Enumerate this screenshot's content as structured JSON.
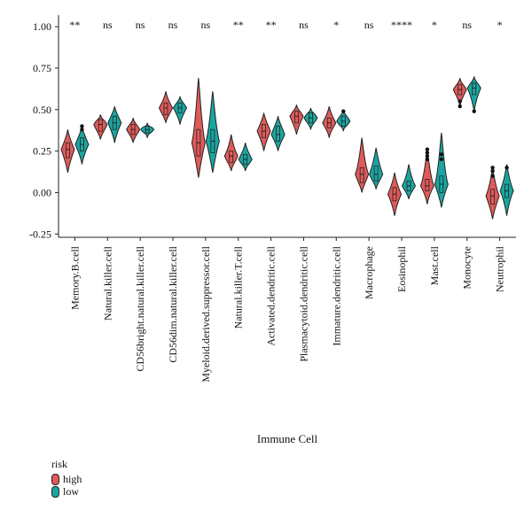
{
  "chart_data": {
    "type": "violin",
    "xlabel": "Immune Cell",
    "ylabel": "",
    "ylim": [
      -0.27,
      1.07
    ],
    "yticks": [
      "1.00",
      "0.75",
      "0.50",
      "0.25",
      "0.00",
      "-0.25"
    ],
    "ytick_values": [
      1.0,
      0.75,
      0.5,
      0.25,
      0.0,
      -0.25
    ],
    "categories": [
      "Memory.B.cell",
      "Natural.killer.cell",
      "CD56bright.natural.killer.cell",
      "CD56dim.natural.killer.cell",
      "Myeloid.derived.suppressor.cell",
      "Natural.killer.T.cell",
      "Activated.dendritic.cell",
      "Plasmacytoid.dendritic.cell",
      "Immature.dendritic.cell",
      "Macrophage",
      "Eosinophil",
      "Mast.cell",
      "Monocyte",
      "Neutrophil"
    ],
    "significance": [
      "**",
      "ns",
      "ns",
      "ns",
      "ns",
      "**",
      "**",
      "ns",
      "*",
      "ns",
      "****",
      "*",
      "ns",
      "*"
    ],
    "series": [
      {
        "name": "high",
        "color": "#e05a5a",
        "min": [
          0.12,
          0.32,
          0.3,
          0.42,
          0.09,
          0.13,
          0.25,
          0.35,
          0.33,
          0.0,
          -0.14,
          -0.07,
          0.52,
          -0.16
        ],
        "q1": [
          0.21,
          0.37,
          0.35,
          0.47,
          0.22,
          0.18,
          0.33,
          0.42,
          0.39,
          0.06,
          -0.05,
          0.01,
          0.59,
          -0.07
        ],
        "median": [
          0.26,
          0.41,
          0.38,
          0.51,
          0.3,
          0.22,
          0.37,
          0.46,
          0.42,
          0.11,
          -0.01,
          0.04,
          0.62,
          -0.02
        ],
        "q3": [
          0.3,
          0.44,
          0.41,
          0.54,
          0.38,
          0.25,
          0.41,
          0.49,
          0.45,
          0.15,
          0.03,
          0.08,
          0.65,
          0.02
        ],
        "max": [
          0.38,
          0.47,
          0.45,
          0.61,
          0.69,
          0.35,
          0.48,
          0.53,
          0.52,
          0.33,
          0.12,
          0.26,
          0.69,
          0.15
        ],
        "outliers": [
          [],
          [],
          [],
          [],
          [],
          [],
          [],
          [],
          [],
          [],
          [],
          [
            0.2,
            0.22,
            0.24,
            0.26
          ],
          [
            0.52,
            0.55
          ],
          [
            0.1,
            0.13,
            0.15
          ]
        ]
      },
      {
        "name": "low",
        "color": "#1aa6a0",
        "min": [
          0.17,
          0.3,
          0.33,
          0.41,
          0.12,
          0.13,
          0.25,
          0.38,
          0.37,
          0.02,
          -0.04,
          -0.09,
          0.49,
          -0.14
        ],
        "q1": [
          0.25,
          0.38,
          0.36,
          0.48,
          0.24,
          0.17,
          0.31,
          0.42,
          0.4,
          0.07,
          0.01,
          0.0,
          0.59,
          -0.03
        ],
        "median": [
          0.29,
          0.42,
          0.38,
          0.51,
          0.31,
          0.2,
          0.35,
          0.45,
          0.43,
          0.11,
          0.04,
          0.05,
          0.63,
          0.01
        ],
        "q3": [
          0.33,
          0.46,
          0.4,
          0.54,
          0.38,
          0.23,
          0.4,
          0.48,
          0.46,
          0.16,
          0.07,
          0.1,
          0.66,
          0.05
        ],
        "max": [
          0.4,
          0.52,
          0.42,
          0.58,
          0.61,
          0.3,
          0.46,
          0.51,
          0.5,
          0.27,
          0.17,
          0.36,
          0.7,
          0.17
        ],
        "outliers": [
          [
            0.38,
            0.4
          ],
          [],
          [],
          [],
          [],
          [],
          [],
          [],
          [
            0.49
          ],
          [],
          [],
          [
            0.2,
            0.23
          ],
          [
            0.49
          ],
          [
            0.15
          ]
        ]
      }
    ],
    "legend": {
      "title": "risk",
      "position": "bottom-left"
    }
  }
}
